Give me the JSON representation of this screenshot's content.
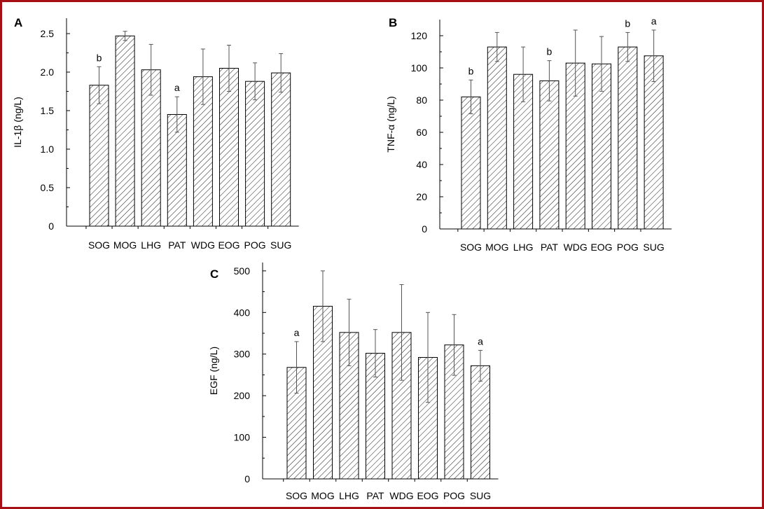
{
  "chart_data": [
    {
      "panel": "A",
      "type": "bar",
      "ylabel": "IL-1β (ng/L)",
      "ylim": [
        0,
        2.7
      ],
      "yticks": [
        0,
        0.5,
        1.0,
        1.5,
        2.0,
        2.5
      ],
      "ytick_labels": [
        "0",
        "0.5",
        "1.0",
        "1.5",
        "2.0",
        "2.5"
      ],
      "categories": [
        "SOG",
        "MOG",
        "LHG",
        "PAT",
        "WDG",
        "EOG",
        "POG",
        "SUG"
      ],
      "values": [
        1.83,
        2.47,
        2.03,
        1.45,
        1.94,
        2.05,
        1.88,
        1.99
      ],
      "errors": [
        0.24,
        0.06,
        0.33,
        0.23,
        0.36,
        0.3,
        0.24,
        0.25
      ],
      "annotations": [
        "b",
        "",
        "",
        "a",
        "",
        "",
        "",
        ""
      ]
    },
    {
      "panel": "B",
      "type": "bar",
      "ylabel": "TNF-α (ng/L)",
      "ylim": [
        0,
        130
      ],
      "yticks": [
        0,
        20,
        40,
        60,
        80,
        100,
        120
      ],
      "ytick_labels": [
        "0",
        "20",
        "40",
        "60",
        "80",
        "100",
        "120"
      ],
      "categories": [
        "SOG",
        "MOG",
        "LHG",
        "PAT",
        "WDG",
        "EOG",
        "POG",
        "SUG"
      ],
      "values": [
        82,
        113,
        96,
        92,
        103,
        102.5,
        113,
        107.5
      ],
      "errors": [
        10.5,
        9,
        17,
        12.5,
        20.5,
        17,
        9,
        16
      ],
      "annotations": [
        "b",
        "",
        "",
        "b",
        "",
        "",
        "b",
        "a"
      ]
    },
    {
      "panel": "C",
      "type": "bar",
      "ylabel": "EGF (ng/L)",
      "ylim": [
        0,
        520
      ],
      "yticks": [
        0,
        100,
        200,
        300,
        400,
        500
      ],
      "ytick_labels": [
        "0",
        "100",
        "200",
        "300",
        "400",
        "500"
      ],
      "categories": [
        "SOG",
        "MOG",
        "LHG",
        "PAT",
        "WDG",
        "EOG",
        "POG",
        "SUG"
      ],
      "values": [
        268,
        415,
        352,
        302,
        352,
        292,
        322,
        272
      ],
      "errors": [
        62,
        85,
        80,
        57,
        115,
        108,
        73,
        37
      ],
      "annotations": [
        "a",
        "",
        "",
        "",
        "",
        "",
        "",
        "a"
      ]
    }
  ]
}
